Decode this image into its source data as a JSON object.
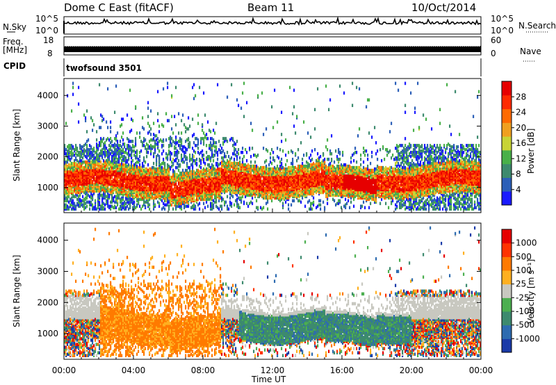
{
  "header": {
    "station": "Dome C East (fitACF)",
    "beam": "Beam 11",
    "date": "10/Oct/2014"
  },
  "nsky": {
    "label": "N.Sky",
    "ticks": [
      "10^5",
      "10^0"
    ],
    "right_ticks": [
      "10^5",
      "10^0"
    ],
    "right_label": "N.Search"
  },
  "freq": {
    "label": "Freq.",
    "unit": "[MHz]",
    "ticks": [
      "18",
      "8"
    ],
    "right_ticks": [
      "60",
      "0"
    ],
    "right_label": "Nave"
  },
  "cpid": {
    "label": "CPID",
    "value": "twofsound 3501"
  },
  "colors": {
    "power": [
      "#1a1aff",
      "#2c5fb8",
      "#3d8a6e",
      "#49b049",
      "#c8d436",
      "#f0a020",
      "#ff6a00",
      "#ff2a00",
      "#e60000"
    ],
    "velocity": [
      "#e60000",
      "#ff3300",
      "#ff7a00",
      "#ffb020",
      "#c8c8c0",
      "#4caf50",
      "#3d8a6e",
      "#2d6bb0",
      "#1a3aa8"
    ]
  },
  "chart_data": [
    {
      "type": "heatmap",
      "title": "",
      "xlabel": "Time UT",
      "ylabel": "Slant Range [km]",
      "x_ticks": [
        "00:00",
        "04:00",
        "08:00",
        "12:00",
        "16:00",
        "20:00",
        "00:00"
      ],
      "xlim": [
        0,
        24
      ],
      "ylim": [
        180,
        4550
      ],
      "y_ticks": [
        1000,
        2000,
        3000,
        4000
      ],
      "colorbar": {
        "label": "Power [dB]",
        "ticks": [
          "4",
          "8",
          "12",
          "16",
          "20",
          "24",
          "28"
        ],
        "range": [
          0,
          30
        ]
      }
    },
    {
      "type": "heatmap",
      "title": "",
      "xlabel": "Time UT",
      "ylabel": "Slant Range [km]",
      "x_ticks": [
        "00:00",
        "04:00",
        "08:00",
        "12:00",
        "16:00",
        "20:00",
        "00:00"
      ],
      "xlim": [
        0,
        24
      ],
      "ylim": [
        180,
        4550
      ],
      "y_ticks": [
        1000,
        2000,
        3000,
        4000
      ],
      "colorbar": {
        "label": "Velocity [m s⁻¹]",
        "ticks": [
          "1000",
          "500",
          "100",
          "25",
          "-25",
          "-100",
          "-500",
          "-1000"
        ]
      }
    }
  ]
}
